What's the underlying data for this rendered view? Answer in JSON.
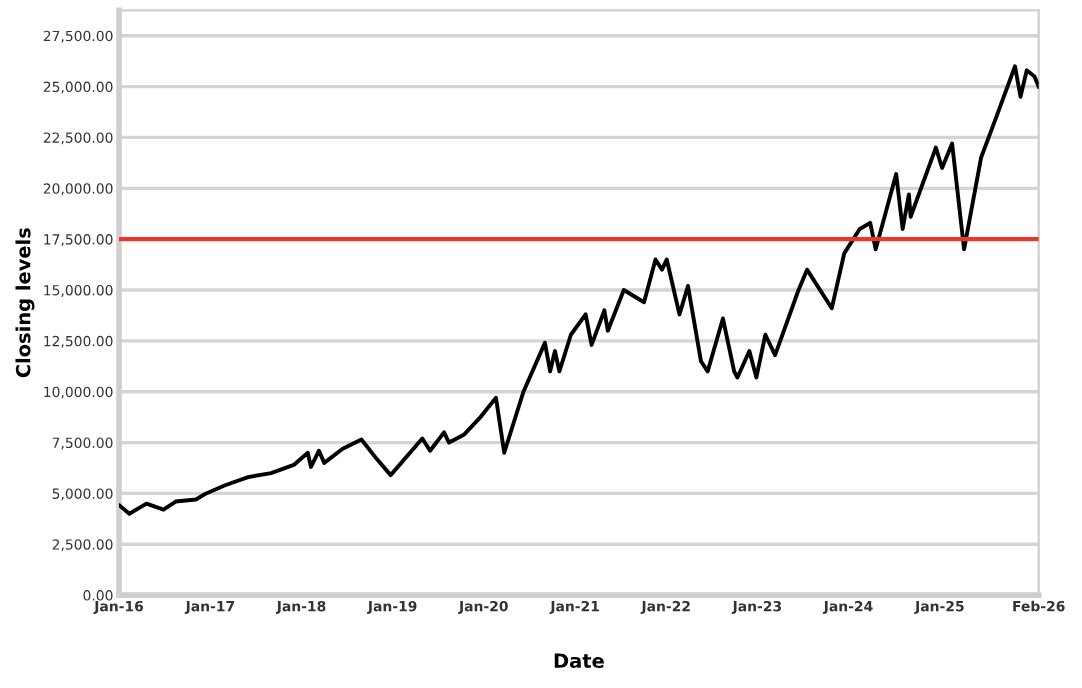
{
  "chart_data": {
    "type": "line",
    "xlabel": "Date",
    "ylabel": "Closing levels",
    "grid": "y",
    "line_style": "solid",
    "marker": "none",
    "xlim": [
      "2016-01-01",
      "2026-02-01"
    ],
    "xticks": [
      {
        "value": "2016-01-01",
        "label": "Jan-16"
      },
      {
        "value": "2017-01-01",
        "label": "Jan-17"
      },
      {
        "value": "2018-01-01",
        "label": "Jan-18"
      },
      {
        "value": "2019-01-01",
        "label": "Jan-19"
      },
      {
        "value": "2020-01-01",
        "label": "Jan-20"
      },
      {
        "value": "2021-01-01",
        "label": "Jan-21"
      },
      {
        "value": "2022-01-01",
        "label": "Jan-22"
      },
      {
        "value": "2023-01-01",
        "label": "Jan-23"
      },
      {
        "value": "2024-01-01",
        "label": "Jan-24"
      },
      {
        "value": "2025-01-01",
        "label": "Jan-25"
      },
      {
        "value": "2026-02-01",
        "label": "Feb-26"
      }
    ],
    "ylim": [
      0,
      28750
    ],
    "yticks": [
      {
        "value": 0,
        "label": "0.00"
      },
      {
        "value": 2500,
        "label": "2,500.00"
      },
      {
        "value": 5000,
        "label": "5,000.00"
      },
      {
        "value": 7500,
        "label": "7,500.00"
      },
      {
        "value": 10000,
        "label": "10,000.00"
      },
      {
        "value": 12500,
        "label": "12,500.00"
      },
      {
        "value": 15000,
        "label": "15,000.00"
      },
      {
        "value": 17500,
        "label": "17,500.00"
      },
      {
        "value": 20000,
        "label": "20,000.00"
      },
      {
        "value": 22500,
        "label": "22,500.00"
      },
      {
        "value": 25000,
        "label": "25,000.00"
      },
      {
        "value": 27500,
        "label": "27,500.00"
      }
    ],
    "ref_lines": [
      {
        "axis": "y",
        "value": 17500,
        "color": "#e8382e"
      }
    ],
    "series": [
      {
        "color": "#000000",
        "x": [
          "2016-01-04",
          "2016-02-11",
          "2016-04-20",
          "2016-06-27",
          "2016-08-15",
          "2016-11-04",
          "2016-12-15",
          "2017-03-01",
          "2017-06-01",
          "2017-09-01",
          "2017-12-01",
          "2018-01-26",
          "2018-02-08",
          "2018-03-12",
          "2018-04-02",
          "2018-06-15",
          "2018-08-29",
          "2018-10-29",
          "2018-12-24",
          "2019-04-30",
          "2019-05-31",
          "2019-07-26",
          "2019-08-15",
          "2019-10-15",
          "2019-12-15",
          "2020-02-19",
          "2020-03-23",
          "2020-06-08",
          "2020-09-02",
          "2020-09-23",
          "2020-10-12",
          "2020-10-30",
          "2020-12-15",
          "2021-02-12",
          "2021-03-08",
          "2021-04-28",
          "2021-05-12",
          "2021-07-15",
          "2021-10-04",
          "2021-11-19",
          "2021-12-15",
          "2022-01-03",
          "2022-02-23",
          "2022-03-29",
          "2022-05-20",
          "2022-06-16",
          "2022-08-16",
          "2022-09-30",
          "2022-10-13",
          "2022-11-30",
          "2022-12-28",
          "2023-02-02",
          "2023-03-13",
          "2023-06-15",
          "2023-07-19",
          "2023-10-26",
          "2023-12-15",
          "2024-02-15",
          "2024-03-28",
          "2024-04-19",
          "2024-07-10",
          "2024-08-05",
          "2024-08-30",
          "2024-09-06",
          "2024-12-16",
          "2025-01-10",
          "2025-02-19",
          "2025-04-08",
          "2025-06-15",
          "2025-08-15",
          "2025-10-29",
          "2025-11-20",
          "2025-12-15",
          "2026-01-15",
          "2026-02-01"
        ],
        "values": [
          4400,
          4000,
          4500,
          4200,
          4600,
          4700,
          5000,
          5400,
          5800,
          6000,
          6400,
          7000,
          6300,
          7100,
          6500,
          7200,
          7650,
          6700,
          5900,
          7700,
          7100,
          8000,
          7500,
          7900,
          8700,
          9700,
          7000,
          10000,
          12400,
          11000,
          12000,
          11000,
          12800,
          13800,
          12300,
          14000,
          13000,
          15000,
          14400,
          16500,
          16000,
          16500,
          13800,
          15200,
          11500,
          11000,
          13600,
          11000,
          10700,
          12000,
          10700,
          12800,
          11800,
          15000,
          16000,
          14100,
          16800,
          18000,
          18300,
          17000,
          20700,
          18000,
          19700,
          18600,
          22000,
          21000,
          22200,
          17000,
          21500,
          23500,
          26000,
          24500,
          25800,
          25500,
          25000
        ]
      }
    ]
  }
}
